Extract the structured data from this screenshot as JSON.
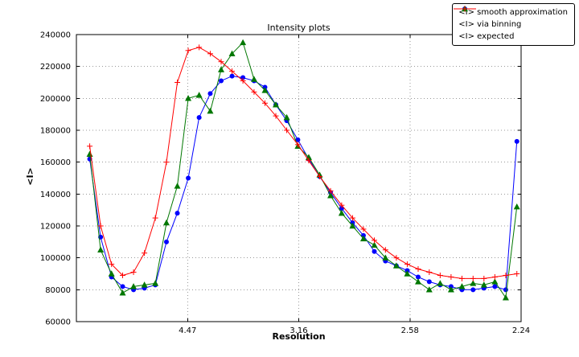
{
  "chart_data": {
    "type": "line",
    "title": "Intensity plots",
    "xlabel": "Resolution",
    "ylabel": "<I>",
    "xlim": [
      0,
      0.2
    ],
    "ylim": [
      60000,
      240000
    ],
    "grid": true,
    "legend_position": "upper right",
    "x_ticks": {
      "values": [
        0.05,
        0.1,
        0.15,
        0.2
      ],
      "labels": [
        "4.47",
        "3.16",
        "2.58",
        "2.24"
      ]
    },
    "y_ticks": {
      "values": [
        60000,
        80000,
        100000,
        120000,
        140000,
        160000,
        180000,
        200000,
        220000,
        240000
      ],
      "labels": [
        "60000",
        "80000",
        "100000",
        "120000",
        "140000",
        "160000",
        "180000",
        "200000",
        "220000",
        "240000"
      ]
    },
    "x": [
      0.006,
      0.0109,
      0.0158,
      0.0208,
      0.0257,
      0.0306,
      0.0355,
      0.0405,
      0.0454,
      0.0503,
      0.0552,
      0.0602,
      0.0651,
      0.07,
      0.0749,
      0.0799,
      0.0848,
      0.0897,
      0.0946,
      0.0996,
      0.1045,
      0.1094,
      0.1143,
      0.1193,
      0.1242,
      0.1291,
      0.134,
      0.139,
      0.1439,
      0.1488,
      0.1537,
      0.1587,
      0.1636,
      0.1685,
      0.1734,
      0.1784,
      0.1833,
      0.1882,
      0.1931,
      0.1981
    ],
    "series": [
      {
        "name": "<I> smooth approximation",
        "color": "#0000ff",
        "marker": "circle",
        "values": [
          162000,
          113000,
          88000,
          82000,
          80000,
          81000,
          83000,
          110000,
          128000,
          150000,
          188000,
          203000,
          211000,
          214000,
          213000,
          211000,
          207000,
          196000,
          186000,
          174000,
          162000,
          151000,
          141000,
          131000,
          122000,
          114000,
          104000,
          98000,
          95000,
          92000,
          88000,
          85000,
          83000,
          82000,
          80000,
          80000,
          81000,
          82000,
          80000,
          173000
        ]
      },
      {
        "name": "<I> via binning",
        "color": "#007700",
        "marker": "triangle",
        "values": [
          165000,
          105000,
          90000,
          78000,
          82000,
          83000,
          84000,
          122000,
          145000,
          200000,
          202000,
          192000,
          218000,
          228000,
          235000,
          212000,
          205000,
          196000,
          188000,
          170000,
          163000,
          152000,
          139000,
          128000,
          120000,
          112000,
          108000,
          100000,
          95000,
          90000,
          85000,
          80000,
          84000,
          80000,
          82000,
          84000,
          83000,
          85000,
          75000,
          132000
        ]
      },
      {
        "name": "<I> expected",
        "color": "#ff0000",
        "marker": "plus",
        "values": [
          170000,
          120000,
          96000,
          89000,
          91000,
          103000,
          125000,
          160000,
          210000,
          230000,
          232000,
          228000,
          223000,
          217000,
          211000,
          204000,
          197000,
          189000,
          180000,
          171000,
          161000,
          151000,
          142000,
          133000,
          125000,
          118000,
          111000,
          105000,
          100000,
          96000,
          93000,
          91000,
          89000,
          88000,
          87000,
          87000,
          87000,
          88000,
          89000,
          90000
        ]
      }
    ]
  }
}
